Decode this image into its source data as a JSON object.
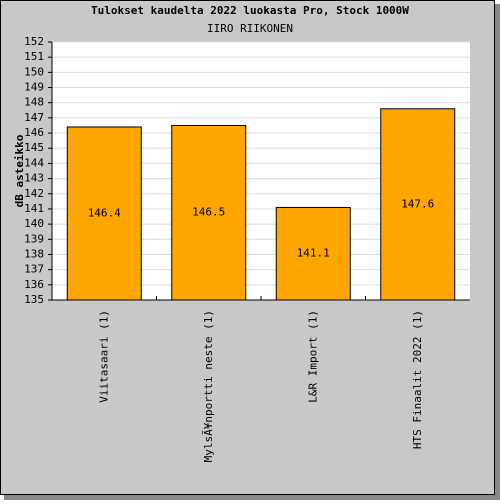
{
  "chart_data": {
    "type": "bar",
    "title": "Tulokset kaudelta 2022 luokasta Pro, Stock 1000W",
    "subtitle": "IIRO RIIKONEN",
    "y_label": "dB asteikko",
    "categories": [
      "Viitasaari (1)",
      "MylsÃ¥nportti neste (1)",
      "L&R Import (1)",
      "HTS Finaalit 2022 (1)"
    ],
    "values": [
      146.4,
      146.5,
      141.1,
      147.6
    ],
    "color": "#ffa500",
    "ylim": [
      135,
      152
    ],
    "yticks": [
      135,
      136,
      137,
      138,
      139,
      140,
      141,
      142,
      143,
      144,
      145,
      146,
      147,
      148,
      149,
      150,
      151,
      152
    ],
    "grid": true
  }
}
